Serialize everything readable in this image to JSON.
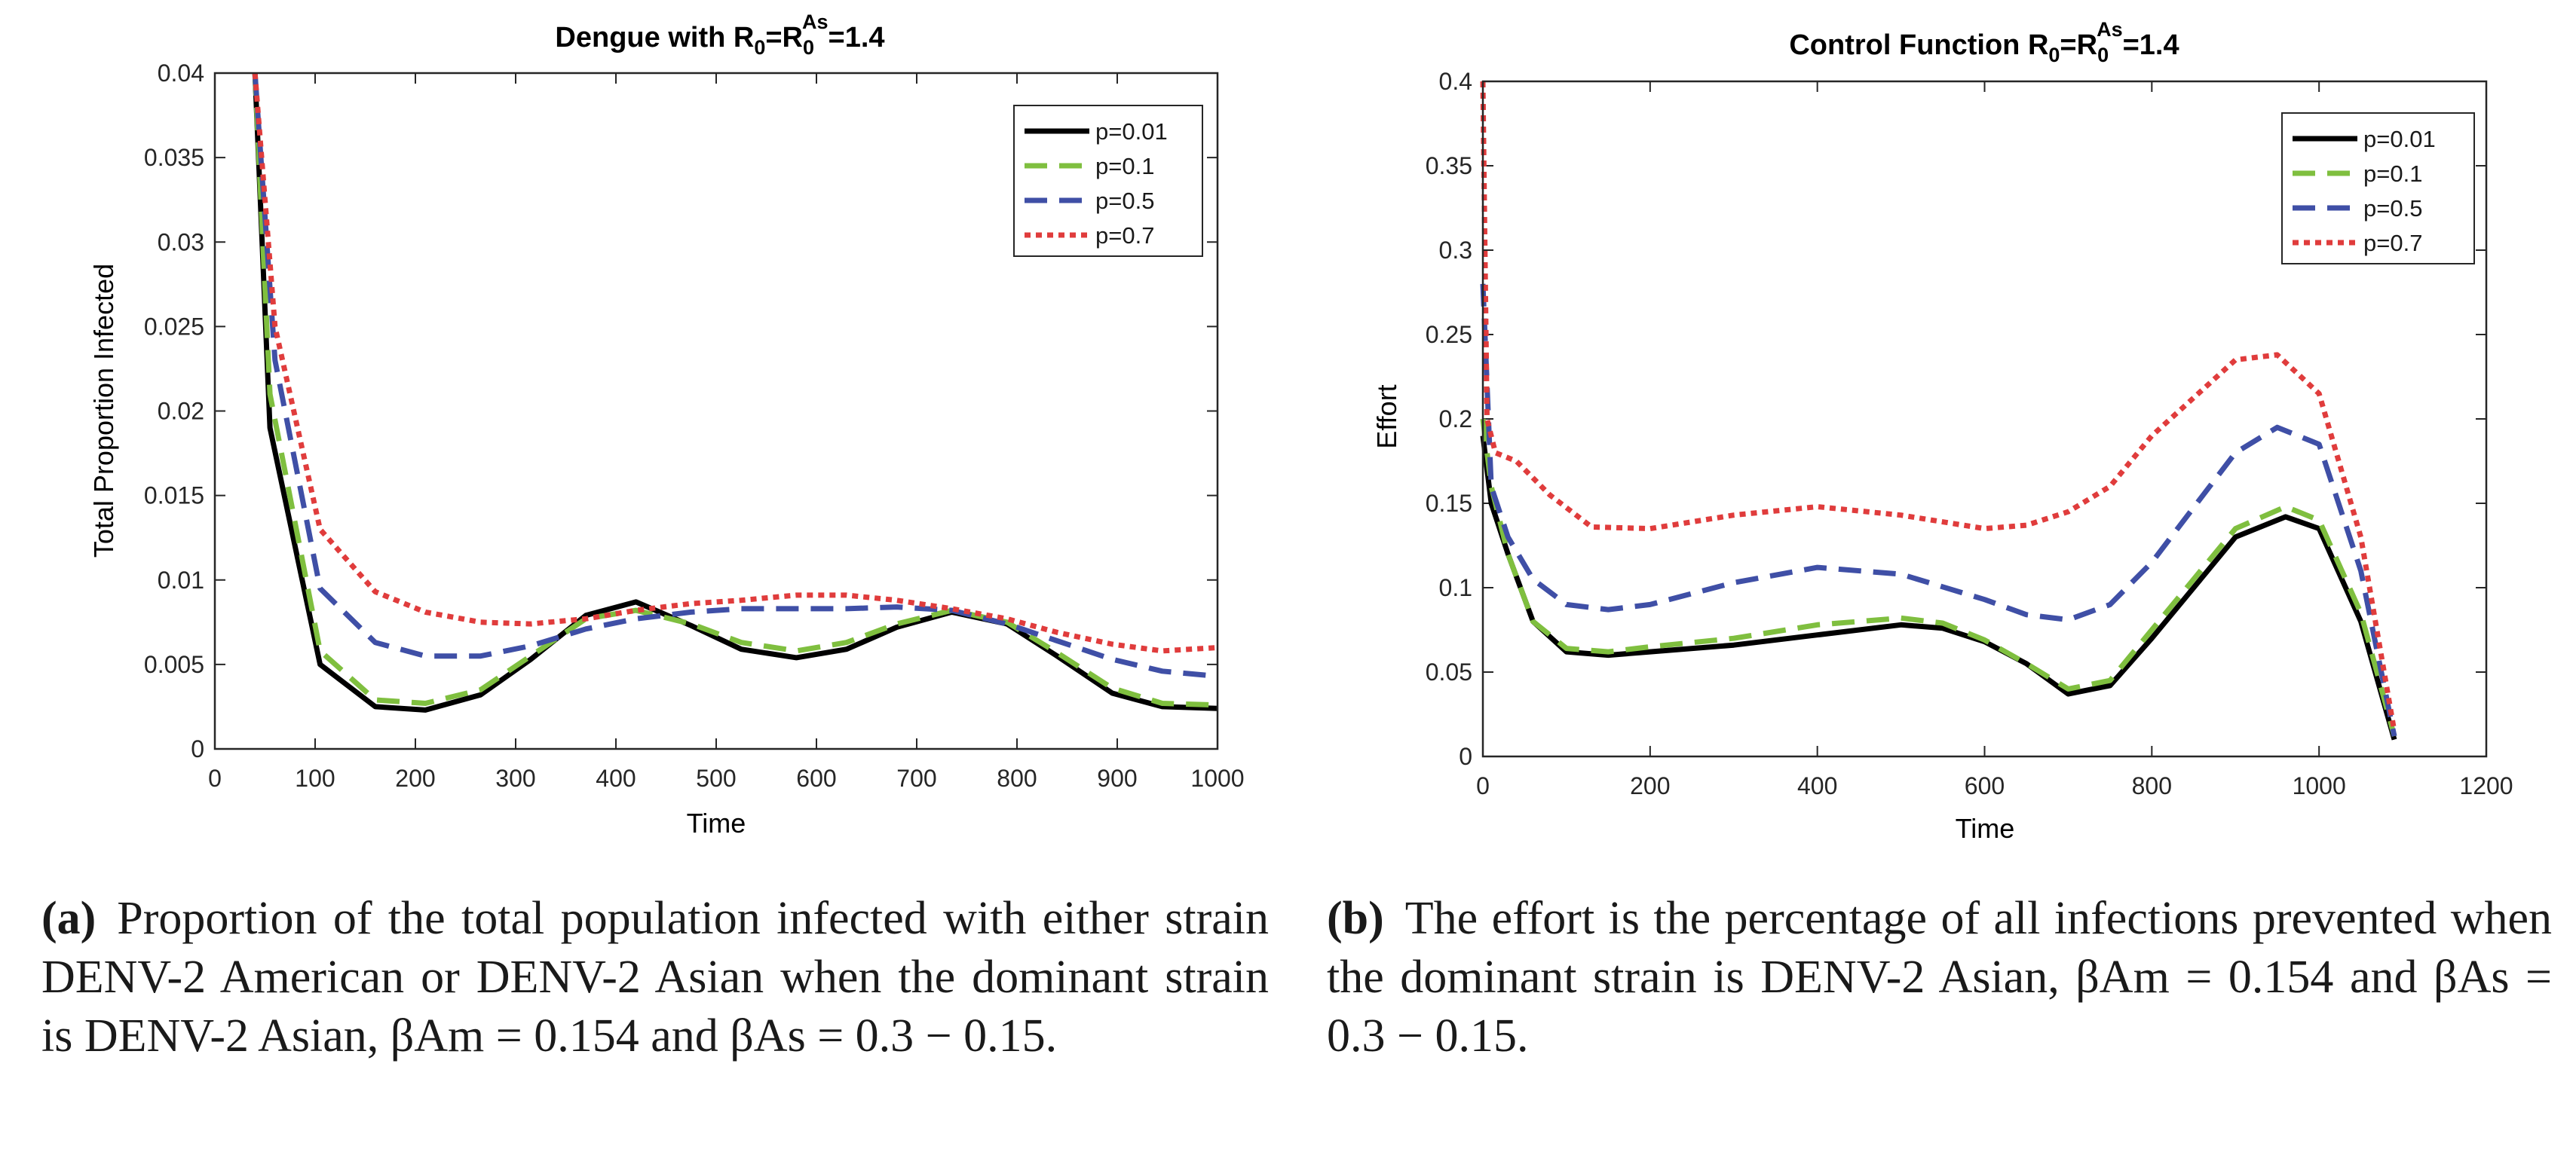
{
  "charts": [
    {
      "id": "a",
      "title_main": "Dengue with R",
      "title_sub0": "0",
      "title_eq": "=R",
      "title_sub1": "0",
      "title_sup": "As",
      "title_end": "=1.4",
      "ylabel": "Total Proportion Infected",
      "xlabel": "Time",
      "xticks": [
        "0",
        "100",
        "200",
        "300",
        "400",
        "500",
        "600",
        "700",
        "800",
        "900",
        "1000"
      ],
      "yticks": [
        "0",
        "0.005",
        "0.01",
        "0.015",
        "0.02",
        "0.025",
        "0.03",
        "0.035",
        "0.04"
      ],
      "legend": [
        "p=0.01",
        "p=0.1",
        "p=0.5",
        "p=0.7"
      ]
    },
    {
      "id": "b",
      "title_main": "Control Function R",
      "title_sub0": "0",
      "title_eq": "=R",
      "title_sub1": "0",
      "title_sup": "As",
      "title_end": "=1.4",
      "ylabel": "Effort",
      "xlabel": "Time",
      "xticks": [
        "0",
        "200",
        "400",
        "600",
        "800",
        "1000",
        "1200"
      ],
      "yticks": [
        "0",
        "0.05",
        "0.1",
        "0.15",
        "0.2",
        "0.25",
        "0.3",
        "0.35",
        "0.4"
      ],
      "legend": [
        "p=0.01",
        "p=0.1",
        "p=0.5",
        "p=0.7"
      ]
    }
  ],
  "chart_data": [
    {
      "type": "line",
      "title": "Dengue with R0=R0As=1.4",
      "xlabel": "Time",
      "ylabel": "Total Proportion Infected",
      "xlim": [
        0,
        1000
      ],
      "ylim": [
        0,
        0.04
      ],
      "series": [
        {
          "name": "p=0.01",
          "color": "#000000",
          "style": "solid",
          "x": [
            40,
            55,
            105,
            160,
            210,
            265,
            315,
            370,
            420,
            475,
            525,
            580,
            630,
            680,
            735,
            790,
            840,
            895,
            945,
            1000
          ],
          "y": [
            0.04,
            0.019,
            0.005,
            0.0025,
            0.0023,
            0.0032,
            0.0053,
            0.0079,
            0.0087,
            0.0073,
            0.0059,
            0.0054,
            0.0059,
            0.0072,
            0.0081,
            0.0074,
            0.0055,
            0.0033,
            0.0025,
            0.0024
          ]
        },
        {
          "name": "p=0.1",
          "color": "#7fbf3f",
          "style": "dashed",
          "x": [
            40,
            55,
            105,
            160,
            210,
            265,
            315,
            370,
            420,
            475,
            525,
            580,
            630,
            680,
            735,
            790,
            840,
            895,
            945,
            1000
          ],
          "y": [
            0.04,
            0.021,
            0.0058,
            0.0029,
            0.0027,
            0.0035,
            0.0055,
            0.0077,
            0.0082,
            0.0074,
            0.0063,
            0.0058,
            0.0063,
            0.0074,
            0.0082,
            0.0075,
            0.0057,
            0.0036,
            0.0027,
            0.0026
          ]
        },
        {
          "name": "p=0.5",
          "color": "#3f4fa6",
          "style": "dashed",
          "x": [
            40,
            60,
            105,
            160,
            210,
            265,
            315,
            370,
            420,
            475,
            525,
            580,
            630,
            680,
            735,
            790,
            840,
            895,
            945,
            1000
          ],
          "y": [
            0.04,
            0.023,
            0.0095,
            0.0063,
            0.0055,
            0.0055,
            0.0061,
            0.0071,
            0.0077,
            0.0081,
            0.0083,
            0.0083,
            0.0083,
            0.0084,
            0.0082,
            0.0074,
            0.0064,
            0.0053,
            0.0046,
            0.0043
          ]
        },
        {
          "name": "p=0.7",
          "color": "#e03c3c",
          "style": "dotted",
          "x": [
            40,
            60,
            105,
            160,
            210,
            265,
            315,
            370,
            420,
            475,
            525,
            580,
            630,
            680,
            735,
            790,
            840,
            895,
            945,
            1000
          ],
          "y": [
            0.04,
            0.025,
            0.013,
            0.0093,
            0.0081,
            0.0075,
            0.0074,
            0.0077,
            0.0082,
            0.0086,
            0.0088,
            0.0091,
            0.0091,
            0.0088,
            0.0083,
            0.0077,
            0.0069,
            0.0062,
            0.0058,
            0.006
          ]
        }
      ]
    },
    {
      "type": "line",
      "title": "Control Function R0=R0As=1.4",
      "xlabel": "Time",
      "ylabel": "Effort",
      "xlim": [
        0,
        1200
      ],
      "ylim": [
        0,
        0.4
      ],
      "series": [
        {
          "name": "p=0.01",
          "color": "#000000",
          "style": "solid",
          "x": [
            0,
            10,
            30,
            60,
            100,
            150,
            200,
            300,
            400,
            500,
            550,
            600,
            650,
            700,
            750,
            800,
            900,
            960,
            1000,
            1050,
            1090
          ],
          "y": [
            0.19,
            0.15,
            0.12,
            0.08,
            0.062,
            0.06,
            0.062,
            0.066,
            0.072,
            0.078,
            0.076,
            0.068,
            0.055,
            0.037,
            0.042,
            0.07,
            0.13,
            0.142,
            0.135,
            0.08,
            0.01
          ]
        },
        {
          "name": "p=0.1",
          "color": "#7fbf3f",
          "style": "dashed",
          "x": [
            0,
            10,
            30,
            60,
            100,
            150,
            200,
            300,
            400,
            500,
            550,
            600,
            650,
            700,
            750,
            800,
            900,
            960,
            1000,
            1050,
            1090
          ],
          "y": [
            0.2,
            0.16,
            0.12,
            0.08,
            0.064,
            0.062,
            0.065,
            0.07,
            0.078,
            0.082,
            0.079,
            0.069,
            0.055,
            0.04,
            0.045,
            0.075,
            0.135,
            0.148,
            0.14,
            0.085,
            0.012
          ]
        },
        {
          "name": "p=0.5",
          "color": "#3f4fa6",
          "style": "dashed",
          "x": [
            0,
            10,
            30,
            60,
            100,
            150,
            200,
            300,
            400,
            500,
            600,
            650,
            700,
            750,
            800,
            900,
            950,
            1000,
            1050,
            1090
          ],
          "y": [
            0.28,
            0.16,
            0.13,
            0.105,
            0.09,
            0.087,
            0.09,
            0.103,
            0.112,
            0.108,
            0.093,
            0.084,
            0.081,
            0.09,
            0.115,
            0.18,
            0.195,
            0.185,
            0.11,
            0.012
          ]
        },
        {
          "name": "p=0.7",
          "color": "#e03c3c",
          "style": "dotted",
          "x": [
            0,
            5,
            15,
            40,
            80,
            130,
            200,
            300,
            400,
            500,
            600,
            650,
            700,
            750,
            800,
            900,
            950,
            1000,
            1050,
            1090
          ],
          "y": [
            0.4,
            0.2,
            0.18,
            0.175,
            0.155,
            0.136,
            0.135,
            0.143,
            0.148,
            0.143,
            0.135,
            0.137,
            0.145,
            0.16,
            0.19,
            0.235,
            0.238,
            0.215,
            0.13,
            0.015
          ]
        }
      ]
    }
  ],
  "captions": {
    "a": {
      "label": "(a)",
      "text": "Proportion of the total population infected with either strain DENV-2 American or DENV-2 Asian when the dominant strain is DENV-2 Asian, βAm = 0.154 and βAs = 0.3 − 0.15."
    },
    "b": {
      "label": "(b)",
      "text": "The effort is the percentage of all infections prevented when the dominant strain is DENV-2 Asian, βAm = 0.154 and βAs = 0.3 − 0.15."
    }
  }
}
